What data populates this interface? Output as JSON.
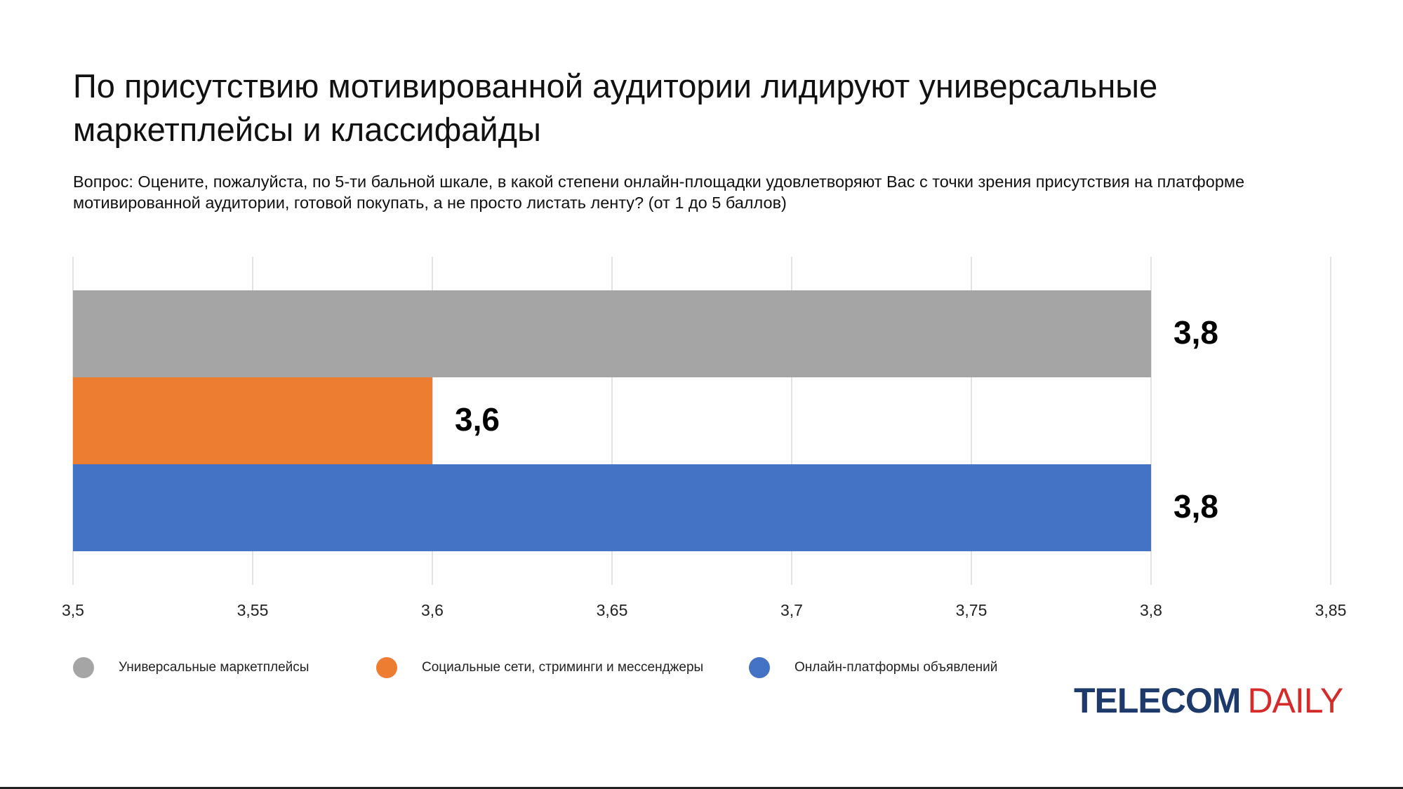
{
  "title": "По присутствию мотивированной аудитории лидируют универсальные маркетплейсы и классифайды",
  "subtitle": "Вопрос: Оцените, пожалуйста, по 5-ти бальной шкале, в какой степени онлайн-площадки удовлетворяют Вас с точки зрения присутствия на платформе мотивированной аудитории, готовой покупать, а не просто листать ленту? (от 1 до 5 баллов)",
  "logo": {
    "part1": "TELECOM",
    "part2": "DAILY"
  },
  "chart_data": {
    "type": "bar",
    "orientation": "horizontal",
    "xlim": [
      3.5,
      3.85
    ],
    "ticks": [
      "3,5",
      "3,55",
      "3,6",
      "3,65",
      "3,7",
      "3,75",
      "3,8",
      "3,85"
    ],
    "tick_values": [
      3.5,
      3.55,
      3.6,
      3.65,
      3.7,
      3.75,
      3.8,
      3.85
    ],
    "grid": "vertical",
    "legend_position": "bottom-left",
    "series": [
      {
        "name": "Универсальные маркетплейсы",
        "value": 3.8,
        "label": "3,8",
        "color": "#a5a5a5"
      },
      {
        "name": "Социальные сети, стриминги и мессенджеры",
        "value": 3.6,
        "label": "3,6",
        "color": "#ed7d31"
      },
      {
        "name": "Онлайн-платформы объявлений",
        "value": 3.8,
        "label": "3,8",
        "color": "#4472c4"
      }
    ]
  }
}
